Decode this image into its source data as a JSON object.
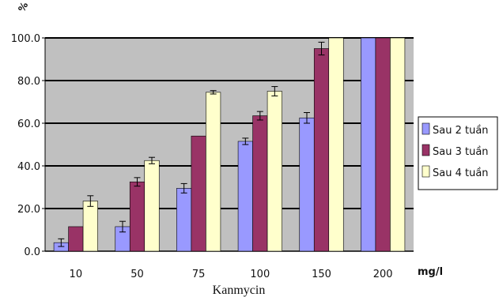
{
  "chart_data": {
    "type": "bar",
    "title": "",
    "ylabel": "%",
    "xlabel": "Kanmycin",
    "x_unit": "mg/l",
    "categories": [
      "10",
      "50",
      "75",
      "100",
      "150",
      "200"
    ],
    "ylim": [
      0,
      100
    ],
    "yticks": [
      "0.0",
      "20.0",
      "40.0",
      "60.0",
      "80.0",
      "100.0"
    ],
    "grid": true,
    "legend_position": "right",
    "series": [
      {
        "name": "Sau 2 tuần",
        "color": "#9999ff",
        "values": [
          4,
          11.5,
          29.5,
          51.5,
          62.5,
          100
        ],
        "errors": [
          1.8,
          2.5,
          2.2,
          1.5,
          2.5,
          0
        ]
      },
      {
        "name": "Sau 3 tuần",
        "color": "#993366",
        "values": [
          11.5,
          32.5,
          54,
          63.5,
          95,
          100
        ],
        "errors": [
          0,
          2,
          0,
          2,
          3,
          0
        ]
      },
      {
        "name": "Sau 4 tuần",
        "color": "#ffffcc",
        "values": [
          23.5,
          42.5,
          74.5,
          75,
          100,
          100
        ],
        "errors": [
          2.5,
          1.5,
          0.8,
          2.2,
          0,
          0
        ]
      }
    ],
    "plot_background": "#c0c0c0"
  }
}
